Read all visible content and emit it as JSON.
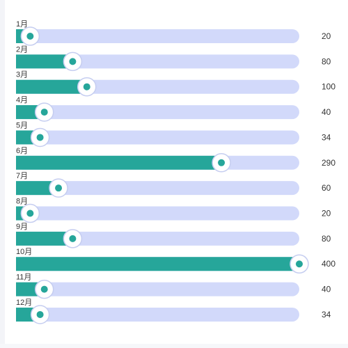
{
  "chart_data": {
    "type": "bar",
    "orientation": "horizontal",
    "categories": [
      "1月",
      "2月",
      "3月",
      "4月",
      "5月",
      "6月",
      "7月",
      "8月",
      "9月",
      "10月",
      "11月",
      "12月"
    ],
    "values": [
      20,
      80,
      100,
      40,
      34,
      290,
      60,
      20,
      80,
      400,
      40,
      34
    ],
    "xlim": [
      0,
      400
    ],
    "grid": false,
    "legend": "none"
  },
  "colors": {
    "fill": "#26a69a",
    "track": "#d2d9fa",
    "knob_ring": "#c5cdf0",
    "knob_face": "#ffffff",
    "knob_dot": "#26a69a"
  }
}
